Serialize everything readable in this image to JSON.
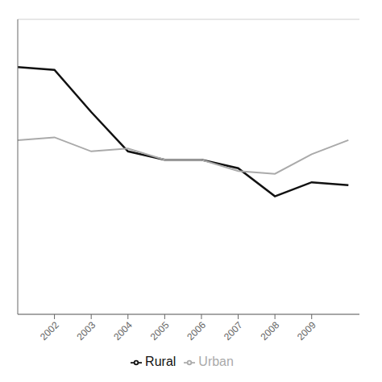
{
  "chart_data": {
    "type": "line",
    "x": [
      2001,
      2002,
      2003,
      2004,
      2005,
      2006,
      2007,
      2008,
      2009,
      2010
    ],
    "series": [
      {
        "name": "Rural",
        "color": "#111111",
        "values": [
          0.88,
          0.87,
          0.72,
          0.58,
          0.55,
          0.55,
          0.52,
          0.42,
          0.47,
          0.46
        ]
      },
      {
        "name": "Urban",
        "color": "#aaaaaa",
        "values": [
          0.62,
          0.63,
          0.58,
          0.59,
          0.55,
          0.55,
          0.51,
          0.5,
          0.57,
          0.62
        ]
      }
    ],
    "xlim": [
      2001,
      2010.3
    ],
    "xticks": [
      2002,
      2003,
      2004,
      2005,
      2006,
      2007,
      2008,
      2009
    ],
    "ylim": [
      0.0,
      1.05
    ],
    "yticks": [
      0.1,
      0.2,
      0.3,
      0.4,
      0.5,
      0.6,
      0.7,
      0.8,
      0.9,
      1.0
    ],
    "grid": true,
    "legend": "bottom",
    "tick_labels": "x"
  }
}
